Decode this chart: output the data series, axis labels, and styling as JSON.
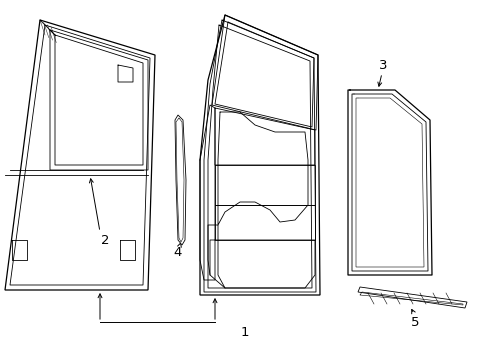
{
  "background_color": "#ffffff",
  "line_color": "#000000",
  "fig_width": 4.89,
  "fig_height": 3.6,
  "dpi": 100,
  "lw_main": 0.9,
  "lw_thin": 0.6,
  "lw_xtra": 0.4
}
